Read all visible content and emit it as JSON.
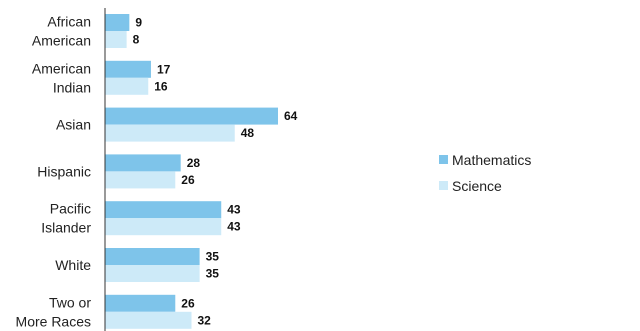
{
  "chart_data": {
    "type": "bar",
    "orientation": "horizontal",
    "categories": [
      [
        "African",
        "American"
      ],
      [
        "American",
        "Indian"
      ],
      [
        "Asian"
      ],
      [
        "Hispanic"
      ],
      [
        "Pacific",
        "Islander"
      ],
      [
        "White"
      ],
      [
        "Two or",
        "More Races"
      ]
    ],
    "series": [
      {
        "name": "Mathematics",
        "color": "#7ec4ea",
        "values": [
          9,
          17,
          64,
          28,
          43,
          35,
          26
        ]
      },
      {
        "name": "Science",
        "color": "#cdeaf8",
        "values": [
          8,
          16,
          48,
          26,
          43,
          35,
          32
        ]
      }
    ],
    "title": "",
    "xlabel": "",
    "ylabel": "",
    "xlim": [
      0,
      64
    ],
    "grid": false,
    "legend": "right"
  }
}
